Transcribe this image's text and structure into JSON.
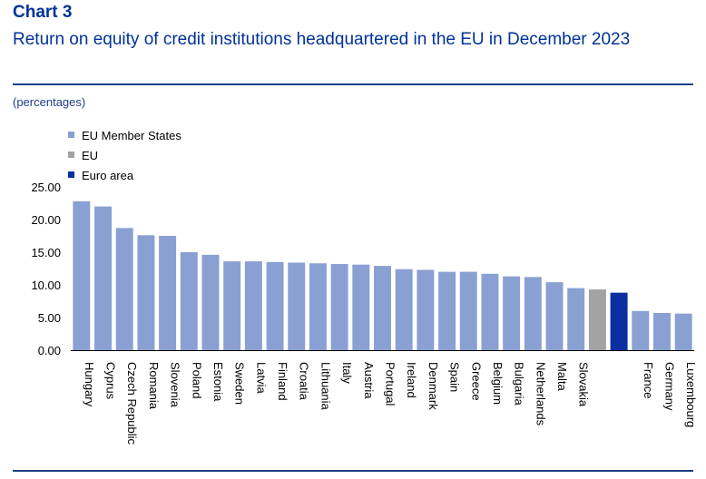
{
  "header": {
    "label": "Chart 3",
    "title": "Return on equity of credit institutions headquartered in the EU in December 2023",
    "units": "(percentages)"
  },
  "colors": {
    "member_states": "#8aa0d2",
    "eu": "#a3a3a3",
    "euro_area": "#0a2fa0"
  },
  "chart_data": {
    "type": "bar",
    "legend": [
      {
        "name": "EU Member States",
        "color": "#8aa0d2"
      },
      {
        "name": "EU",
        "color": "#a3a3a3"
      },
      {
        "name": "Euro area",
        "color": "#0a2fa0"
      }
    ],
    "legend_position": "top-left",
    "categories": [
      "Hungary",
      "Cyprus",
      "Czech Republic",
      "Romania",
      "Slovenia",
      "Poland",
      "Estonia",
      "Sweden",
      "Latvia",
      "Finland",
      "Croatia",
      "Lithuania",
      "Italy",
      "Austria",
      "Portugal",
      "Ireland",
      "Denmark",
      "Spain",
      "Greece",
      "Belgium",
      "Bulgaria",
      "Netherlands",
      "Malta",
      "Slovakia",
      "",
      "",
      "France",
      "Germany",
      "Luxembourg"
    ],
    "groups": [
      "member",
      "member",
      "member",
      "member",
      "member",
      "member",
      "member",
      "member",
      "member",
      "member",
      "member",
      "member",
      "member",
      "member",
      "member",
      "member",
      "member",
      "member",
      "member",
      "member",
      "member",
      "member",
      "member",
      "member",
      "eu",
      "euro_area",
      "member",
      "member",
      "member"
    ],
    "values": [
      22.8,
      22.0,
      18.7,
      17.6,
      17.5,
      15.0,
      14.6,
      13.6,
      13.6,
      13.5,
      13.4,
      13.3,
      13.2,
      13.1,
      12.9,
      12.4,
      12.3,
      12.0,
      12.0,
      11.7,
      11.3,
      11.2,
      10.4,
      9.5,
      9.3,
      8.8,
      6.0,
      5.7,
      5.6
    ],
    "y_ticks": [
      "0.00",
      "5.00",
      "10.00",
      "15.00",
      "20.00",
      "25.00"
    ],
    "ylim": [
      0,
      25
    ],
    "grid": false
  }
}
